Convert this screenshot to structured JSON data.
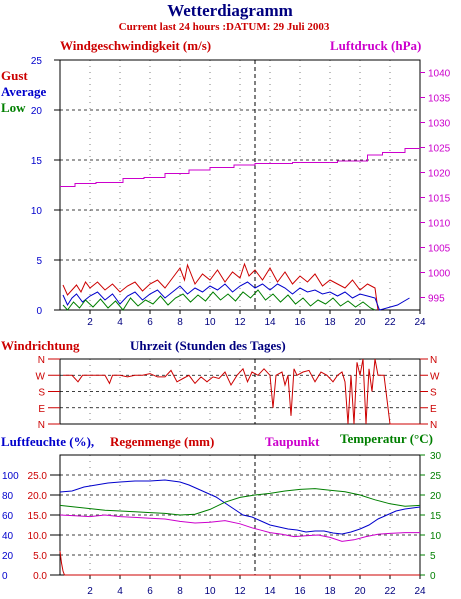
{
  "header": {
    "title": "Wetterdiagramm",
    "subtitle": "Current last 24 hours :DATUM: 29 Juli 2003"
  },
  "colors": {
    "title": "#00007f",
    "red": "#cc0000",
    "blue": "#0000cc",
    "green": "#007f00",
    "magenta": "#cc00cc",
    "grid": "#000000"
  },
  "chart_data": [
    {
      "type": "line",
      "id": "wind",
      "xlabel": "Uhrzeit (Stunden des Tages)",
      "xlim": [
        0,
        24
      ],
      "x_ticks": [
        "2",
        "4",
        "6",
        "8",
        "10",
        "12",
        "14",
        "16",
        "18",
        "20",
        "22",
        "24"
      ],
      "left_axis": {
        "label": "Windgeschwindigkeit (m/s)",
        "ylim": [
          0,
          25
        ],
        "ticks": [
          "0",
          "5",
          "10",
          "15",
          "20",
          "25"
        ]
      },
      "right_axis": {
        "label": "Luftdruck (hPa)",
        "ylim": [
          992.5,
          1042.5
        ],
        "ticks": [
          "995",
          "1000",
          "1005",
          "1010",
          "1015",
          "1020",
          "1025",
          "1030",
          "1035",
          "1040"
        ]
      },
      "legend": [
        "Gust",
        "Average",
        "Low"
      ],
      "legend_position": "left",
      "grid": true,
      "series": [
        {
          "name": "Gust",
          "axis": "left",
          "color": "#cc0000",
          "x": [
            0.2,
            0.5,
            0.8,
            1.1,
            1.4,
            1.7,
            2.0,
            2.5,
            3.0,
            3.5,
            4.0,
            4.5,
            5.0,
            5.5,
            6.0,
            6.5,
            7.0,
            7.5,
            8.0,
            8.3,
            8.5,
            9.0,
            9.5,
            10.0,
            10.5,
            11.0,
            11.5,
            12.0,
            12.3,
            12.6,
            13.0,
            13.5,
            14.0,
            14.5,
            15.0,
            15.5,
            16.0,
            16.5,
            17.0,
            17.5,
            18.0,
            18.5,
            19.0,
            19.5,
            20.0,
            20.5,
            21.0,
            21.2
          ],
          "values": [
            2.5,
            1.5,
            2.0,
            2.5,
            1.8,
            2.8,
            2.2,
            2.8,
            2.0,
            2.6,
            1.8,
            2.4,
            2.8,
            1.9,
            2.6,
            3.0,
            2.2,
            3.2,
            4.2,
            3.0,
            4.5,
            2.6,
            3.6,
            3.0,
            4.0,
            2.8,
            3.8,
            3.2,
            4.6,
            3.4,
            4.0,
            3.0,
            4.2,
            2.8,
            3.8,
            2.6,
            3.4,
            2.8,
            3.6,
            2.4,
            3.0,
            2.6,
            2.2,
            3.0,
            2.0,
            2.6,
            2.2,
            0.0
          ]
        },
        {
          "name": "Average",
          "axis": "left",
          "color": "#0000cc",
          "x": [
            0.2,
            0.5,
            0.8,
            1.1,
            1.5,
            2.0,
            2.5,
            3.0,
            3.5,
            4.0,
            4.5,
            5.0,
            5.5,
            6.0,
            6.5,
            7.0,
            7.5,
            8.0,
            8.5,
            9.0,
            9.5,
            10.0,
            10.5,
            11.0,
            11.5,
            12.0,
            12.5,
            13.0,
            13.5,
            14.0,
            14.5,
            15.0,
            15.5,
            16.0,
            16.5,
            17.0,
            17.5,
            18.0,
            18.5,
            19.0,
            19.5,
            20.0,
            20.5,
            21.0,
            21.3,
            22.5,
            23.3
          ],
          "values": [
            1.5,
            0.5,
            1.2,
            1.6,
            0.8,
            1.4,
            1.8,
            1.0,
            1.6,
            0.6,
            1.4,
            1.8,
            1.0,
            1.6,
            2.0,
            1.2,
            1.8,
            2.4,
            1.6,
            2.2,
            1.8,
            2.4,
            2.0,
            2.6,
            1.8,
            2.4,
            2.8,
            2.2,
            2.6,
            2.0,
            2.6,
            2.2,
            1.6,
            2.2,
            1.8,
            2.0,
            1.6,
            1.8,
            1.4,
            1.8,
            1.2,
            1.6,
            1.4,
            1.2,
            0.0,
            0.5,
            1.2
          ]
        },
        {
          "name": "Low",
          "axis": "left",
          "color": "#007f00",
          "x": [
            0.2,
            0.5,
            0.9,
            1.3,
            1.7,
            2.2,
            2.7,
            3.2,
            3.7,
            4.2,
            4.7,
            5.2,
            5.7,
            6.2,
            6.7,
            7.2,
            7.7,
            8.2,
            8.7,
            9.2,
            9.7,
            10.2,
            10.7,
            11.2,
            11.7,
            12.2,
            12.7,
            13.2,
            13.7,
            14.2,
            14.7,
            15.2,
            15.7,
            16.2,
            16.7,
            17.2,
            17.7,
            18.2,
            18.7,
            19.2,
            19.7,
            20.2,
            20.7,
            21.0
          ],
          "values": [
            0.5,
            0.0,
            0.8,
            0.2,
            1.0,
            0.3,
            1.1,
            0.2,
            0.9,
            0.0,
            1.2,
            0.4,
            1.0,
            0.6,
            1.4,
            0.5,
            1.2,
            1.6,
            0.8,
            1.5,
            0.9,
            1.8,
            1.0,
            1.6,
            0.9,
            1.8,
            1.2,
            2.0,
            1.0,
            1.6,
            0.8,
            1.5,
            0.6,
            1.2,
            0.4,
            1.0,
            0.6,
            1.2,
            0.4,
            0.9,
            0.3,
            0.8,
            0.2,
            0.0
          ]
        },
        {
          "name": "Luftdruck",
          "axis": "right",
          "color": "#cc00cc",
          "x": [
            0,
            1.0,
            1.0,
            2.4,
            2.4,
            4.2,
            4.2,
            5.6,
            5.6,
            7.0,
            7.0,
            8.6,
            8.6,
            10.0,
            10.0,
            11.6,
            11.6,
            13.0,
            13.0,
            15.5,
            15.5,
            18.5,
            18.5,
            20.5,
            20.5,
            21.5,
            21.5,
            23.0,
            23.0,
            24.0
          ],
          "values": [
            1017.2,
            1017.2,
            1017.8,
            1017.8,
            1018.0,
            1018.0,
            1018.8,
            1018.8,
            1019.0,
            1019.0,
            1019.8,
            1019.8,
            1020.5,
            1020.5,
            1021.0,
            1021.0,
            1021.5,
            1021.5,
            1021.8,
            1021.8,
            1022.0,
            1022.0,
            1022.3,
            1022.3,
            1023.5,
            1023.5,
            1024.0,
            1024.0,
            1024.8,
            1024.8
          ]
        }
      ]
    },
    {
      "type": "line",
      "id": "winddir",
      "ylabel": "Windrichtung",
      "xlim": [
        0,
        24
      ],
      "y_categories": [
        "N",
        "W",
        "S",
        "E",
        "N"
      ],
      "ylim": [
        0,
        4
      ],
      "grid": true,
      "series": [
        {
          "name": "Windrichtung",
          "color": "#cc0000",
          "x": [
            0.2,
            0.8,
            1.2,
            1.5,
            2.0,
            2.5,
            3.0,
            3.3,
            3.5,
            4.0,
            4.5,
            5.0,
            5.5,
            6.0,
            6.5,
            7.0,
            7.4,
            7.8,
            8.2,
            8.6,
            9.0,
            9.4,
            9.8,
            10.2,
            10.6,
            11.0,
            11.4,
            11.8,
            12.2,
            12.5,
            12.8,
            13.2,
            13.6,
            14.0,
            14.2,
            14.4,
            14.8,
            15.0,
            15.2,
            15.4,
            15.6,
            15.8,
            16.2,
            16.6,
            17.0,
            17.4,
            17.8,
            18.2,
            18.5,
            18.8,
            19.0,
            19.2,
            19.4,
            19.6,
            19.8,
            20.0,
            20.2,
            20.4,
            20.6,
            20.8,
            21.0,
            21.2,
            21.6,
            22.0,
            24.0
          ],
          "values": [
            3.0,
            3.0,
            2.6,
            3.0,
            3.0,
            3.0,
            3.0,
            2.5,
            3.0,
            3.0,
            2.9,
            3.0,
            3.0,
            3.1,
            2.9,
            2.9,
            3.3,
            2.6,
            2.8,
            3.0,
            2.5,
            2.9,
            2.6,
            2.9,
            2.8,
            3.2,
            2.4,
            3.0,
            3.4,
            2.6,
            3.2,
            3.0,
            3.4,
            3.0,
            1.0,
            3.0,
            3.2,
            2.4,
            3.0,
            0.5,
            3.4,
            3.0,
            3.2,
            3.3,
            2.6,
            3.2,
            3.0,
            2.6,
            3.0,
            3.2,
            2.6,
            0.0,
            3.0,
            0.0,
            3.8,
            3.0,
            4.0,
            0.0,
            3.4,
            2.0,
            4.0,
            3.0,
            3.0,
            0.0,
            0.0
          ]
        }
      ]
    },
    {
      "type": "line",
      "id": "humidity",
      "xlim": [
        0,
        24
      ],
      "x_ticks": [
        "2",
        "4",
        "6",
        "8",
        "10",
        "12",
        "14",
        "16",
        "18",
        "20",
        "22",
        "24"
      ],
      "axes": {
        "humidity": {
          "label": "Luftfeuchte (%),",
          "ylim": [
            0,
            120
          ],
          "ticks": [
            "0",
            "20",
            "40",
            "60",
            "80",
            "100"
          ]
        },
        "rain": {
          "label": "Regenmenge (mm)",
          "ylim": [
            0,
            30
          ],
          "ticks": [
            "0.0",
            "5.0",
            "10.0",
            "15.0",
            "20.0",
            "25.0"
          ]
        },
        "dewpoint": {
          "label": "Taupunkt"
        },
        "temperature": {
          "label": "Temperatur (°C)",
          "ylim": [
            0,
            30
          ],
          "ticks": [
            "0",
            "5",
            "10",
            "15",
            "20",
            "25",
            "30"
          ]
        }
      },
      "grid": true,
      "series": [
        {
          "name": "Luftfeuchte",
          "axis": "humidity",
          "color": "#0000cc",
          "x": [
            0,
            0.8,
            1.6,
            2.4,
            3.2,
            4.0,
            5.0,
            6.0,
            7.0,
            8.0,
            8.6,
            9.2,
            9.8,
            10.4,
            11.0,
            11.6,
            12.2,
            12.8,
            13.4,
            14.0,
            14.6,
            15.2,
            15.8,
            16.4,
            17.0,
            17.6,
            18.2,
            18.8,
            19.4,
            20.0,
            20.6,
            21.2,
            21.8,
            22.4,
            23.0,
            24.0
          ],
          "values": [
            83,
            84,
            88,
            90,
            92,
            93,
            94,
            94,
            95,
            93,
            90,
            86,
            82,
            78,
            72,
            66,
            60,
            58,
            54,
            50,
            48,
            46,
            45,
            43,
            44,
            44,
            42,
            41,
            43,
            46,
            50,
            56,
            60,
            64,
            66,
            68
          ]
        },
        {
          "name": "Regenmenge",
          "axis": "rain",
          "color": "#cc0000",
          "x": [
            0.0,
            0.1,
            0.2,
            0.3,
            24.0
          ],
          "values": [
            6.0,
            3.0,
            1.0,
            0.0,
            0.0
          ]
        },
        {
          "name": "Taupunkt",
          "axis": "temperature",
          "color": "#cc00cc",
          "x": [
            0,
            1.0,
            2.0,
            3.0,
            4.0,
            5.0,
            6.0,
            7.0,
            8.0,
            9.0,
            10.0,
            11.0,
            12.0,
            12.8,
            13.4,
            14.0,
            14.8,
            15.6,
            16.4,
            17.2,
            18.0,
            18.8,
            19.6,
            20.4,
            21.2,
            22.0,
            23.0,
            24.0
          ],
          "values": [
            15.0,
            14.8,
            14.6,
            15.0,
            14.6,
            14.4,
            14.2,
            14.0,
            13.4,
            13.0,
            13.2,
            13.6,
            12.8,
            11.8,
            11.2,
            10.6,
            10.2,
            9.6,
            9.8,
            10.0,
            9.4,
            8.4,
            8.8,
            9.6,
            10.2,
            10.4,
            10.6,
            10.6
          ]
        },
        {
          "name": "Temperatur",
          "axis": "temperature",
          "color": "#007f00",
          "x": [
            0,
            1.0,
            2.0,
            3.0,
            4.0,
            5.0,
            6.0,
            7.0,
            8.0,
            9.0,
            10.0,
            11.0,
            12.0,
            13.0,
            14.0,
            15.0,
            16.0,
            17.0,
            18.0,
            19.0,
            20.0,
            21.0,
            22.0,
            23.0,
            24.0
          ],
          "values": [
            17.4,
            17.0,
            16.6,
            16.2,
            16.0,
            15.8,
            15.6,
            15.4,
            15.0,
            15.2,
            16.4,
            18.2,
            19.4,
            20.0,
            20.4,
            21.0,
            21.4,
            21.6,
            21.2,
            20.8,
            20.0,
            18.8,
            17.8,
            17.2,
            17.4
          ]
        }
      ]
    }
  ]
}
